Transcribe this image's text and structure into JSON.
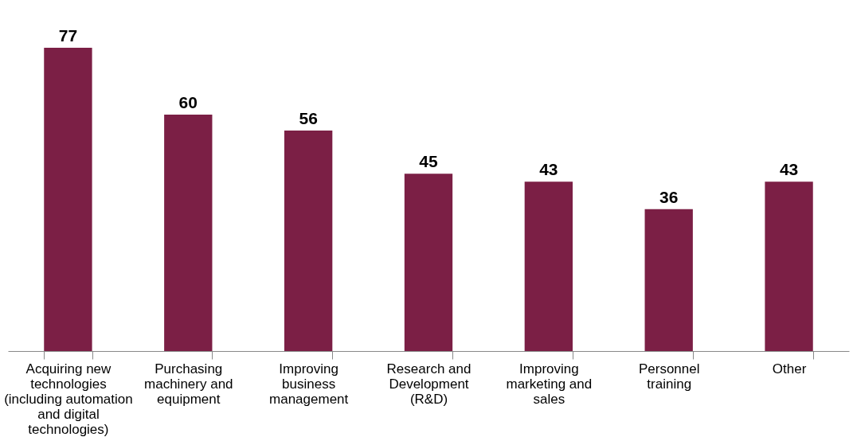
{
  "chart_data": {
    "type": "bar",
    "categories": [
      "Acquiring new\ntechnologies\n(including automation\nand digital\ntechnologies)",
      "Purchasing\nmachinery and\nequipment",
      "Improving\nbusiness\nmanagement",
      "Research and\nDevelopment\n(R&D)",
      "Improving\nmarketing and\nsales",
      "Personnel\ntraining",
      "Other"
    ],
    "values": [
      77,
      60,
      56,
      45,
      43,
      36,
      43
    ],
    "color": "#7b1f45",
    "data_labels": true,
    "grid": false
  }
}
